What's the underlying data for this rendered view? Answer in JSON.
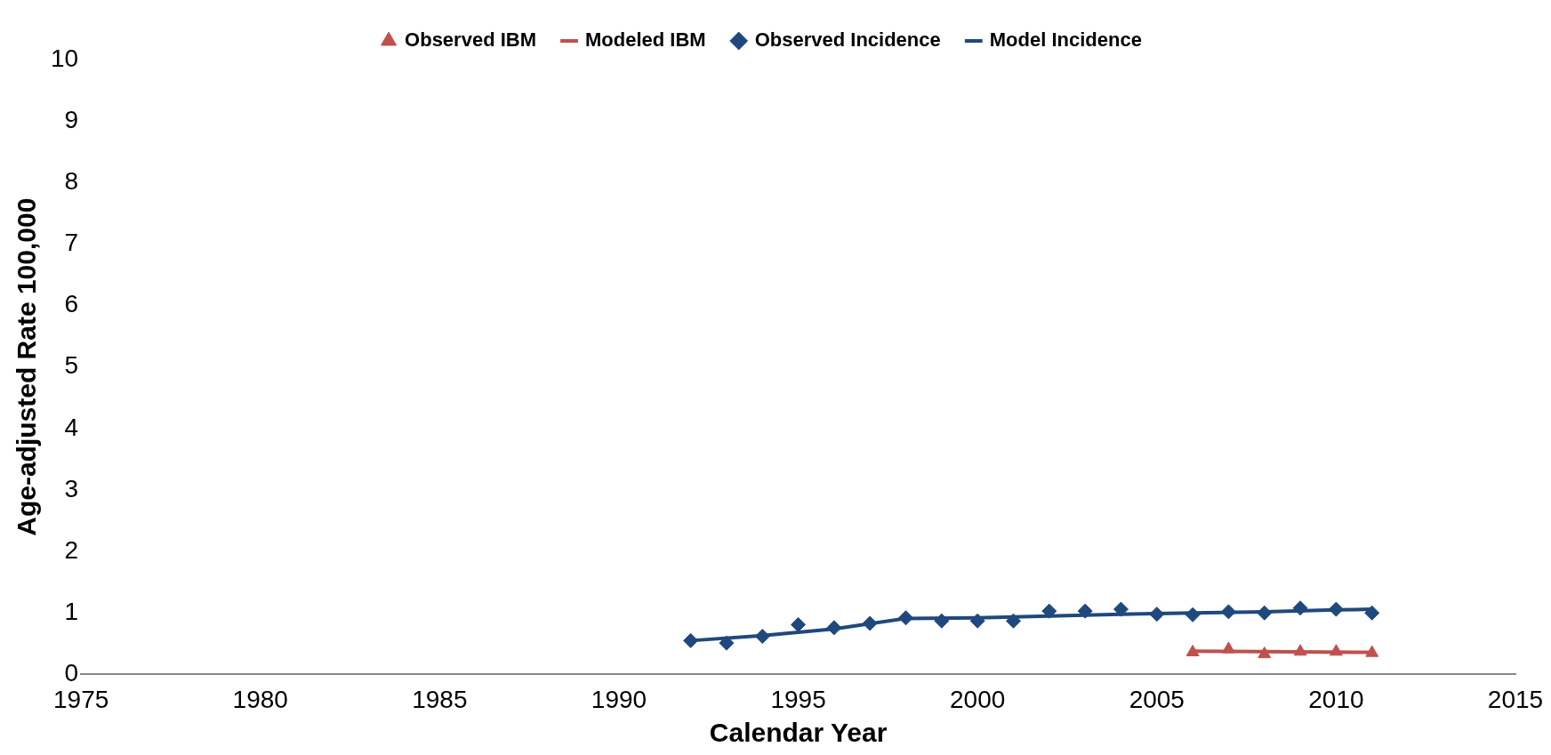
{
  "chart_data": {
    "type": "line",
    "xlabel": "Calendar Year",
    "ylabel": "Age-adjusted Rate 100,000",
    "xlim": [
      1975,
      2015
    ],
    "xticks": [
      1975,
      1980,
      1985,
      1990,
      1995,
      2000,
      2005,
      2010,
      2015
    ],
    "ylim": [
      0,
      10
    ],
    "yticks": [
      0,
      1,
      2,
      3,
      4,
      5,
      6,
      7,
      8,
      9,
      10
    ],
    "grid": false,
    "legend": "top",
    "series": [
      {
        "name": "Observed IBM",
        "type": "scatter",
        "marker": "triangle",
        "color": "#c0504d",
        "x": [
          2006,
          2007,
          2008,
          2009,
          2010,
          2011
        ],
        "values": [
          0.36,
          0.41,
          0.33,
          0.37,
          0.37,
          0.35
        ]
      },
      {
        "name": "Modeled IBM",
        "marker": "none",
        "color": "#c0504d",
        "x": [
          2006,
          2008,
          2011
        ],
        "values": [
          0.38,
          0.37,
          0.36
        ]
      },
      {
        "name": "Observed Incidence",
        "type": "scatter",
        "marker": "diamond",
        "color": "#1f497d",
        "x": [
          1992,
          1993,
          1994,
          1995,
          1996,
          1997,
          1998,
          1999,
          2000,
          2001,
          2002,
          2003,
          2004,
          2005,
          2006,
          2007,
          2008,
          2009,
          2010,
          2011
        ],
        "values": [
          0.55,
          0.51,
          0.62,
          0.81,
          0.76,
          0.83,
          0.92,
          0.87,
          0.87,
          0.87,
          1.03,
          1.03,
          1.06,
          0.98,
          0.97,
          1.02,
          1.0,
          1.08,
          1.06,
          1.0
        ]
      },
      {
        "name": "Model Incidence",
        "marker": "none",
        "color": "#1f497d",
        "x": [
          1992,
          1994,
          1996,
          1998,
          2000,
          2002,
          2004,
          2006,
          2008,
          2010,
          2011
        ],
        "values": [
          0.55,
          0.63,
          0.74,
          0.91,
          0.92,
          0.95,
          0.98,
          1.0,
          1.02,
          1.05,
          1.06
        ]
      }
    ]
  }
}
